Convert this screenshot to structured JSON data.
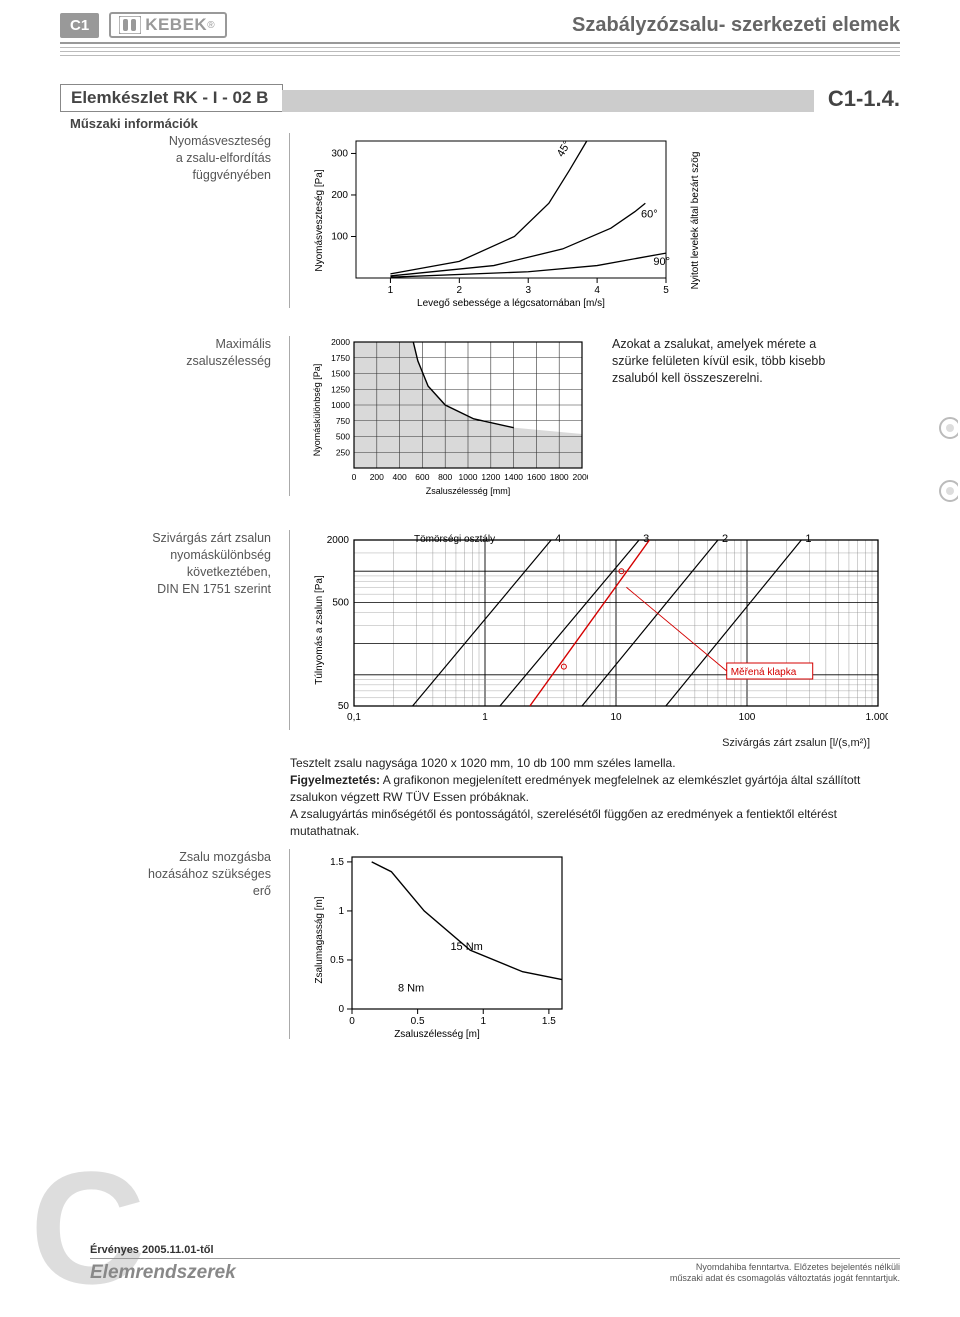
{
  "header": {
    "badge": "C1",
    "logo_text": "KEBEK",
    "title": "Szabályzózsalu- szerkezeti elemek"
  },
  "section": {
    "title": "Elemkészlet RK - I - 02 B",
    "code": "C1-1.4.",
    "subhead": "Műszaki információk"
  },
  "block1": {
    "label_lines": [
      "Nyomásveszteség",
      "a zsalu-elfordítás",
      "függvényében"
    ],
    "chart": {
      "type": "line",
      "ylabel": "Nyomásveszteség [Pa]",
      "xlabel": "Levegő sebessége a légcsatornában [m/s]",
      "rlabel": "Nyitott levelek által bezárt szög",
      "yticks": [
        100,
        200,
        300
      ],
      "xticks": [
        1,
        2,
        3,
        4,
        5
      ],
      "xlim": [
        0.5,
        5
      ],
      "ylim": [
        0,
        330
      ],
      "curve_labels": [
        "45°",
        "60°",
        "90°"
      ],
      "curves": [
        [
          [
            1,
            10
          ],
          [
            2,
            40
          ],
          [
            2.8,
            100
          ],
          [
            3.3,
            180
          ],
          [
            3.6,
            260
          ],
          [
            3.85,
            330
          ]
        ],
        [
          [
            1,
            5
          ],
          [
            2.5,
            30
          ],
          [
            3.5,
            70
          ],
          [
            4.2,
            120
          ],
          [
            4.55,
            160
          ],
          [
            4.7,
            180
          ]
        ],
        [
          [
            1,
            2
          ],
          [
            3,
            15
          ],
          [
            4,
            30
          ],
          [
            4.6,
            48
          ],
          [
            5,
            60
          ]
        ]
      ],
      "grid_color": "#666",
      "bg": "#ffffff",
      "line_color": "#000000",
      "font_size": 10
    }
  },
  "block2": {
    "label_lines": [
      "Maximális",
      "zsaluszélesség"
    ],
    "note": "Azokat a zsalukat, amelyek mérete a szürke felületen kívül esik, több kisebb zsaluból kell összeszerelni.",
    "chart": {
      "type": "area-limit",
      "ylabel": "Nyomáskülönbség [Pa]",
      "xlabel": "Zsaluszélesség [mm]",
      "yticks": [
        250,
        500,
        750,
        1000,
        1250,
        1500,
        1750,
        2000
      ],
      "xticks": [
        0,
        200,
        400,
        600,
        800,
        1000,
        1200,
        1400,
        1600,
        1800,
        2000
      ],
      "xlim": [
        0,
        2000
      ],
      "ylim": [
        0,
        2000
      ],
      "grey_region": [
        [
          0,
          0
        ],
        [
          0,
          2000
        ],
        [
          520,
          2000
        ],
        [
          560,
          1700
        ],
        [
          650,
          1300
        ],
        [
          800,
          1000
        ],
        [
          1050,
          780
        ],
        [
          1400,
          640
        ],
        [
          2000,
          540
        ],
        [
          2000,
          0
        ]
      ],
      "grid_color": "#333",
      "fill_color": "#d9d9d9",
      "font_size": 9
    }
  },
  "block3": {
    "label_lines": [
      "Szivárgás zárt zsalun",
      "nyomáskülönbség",
      "következtében,",
      "DIN EN 1751 szerint"
    ],
    "chart": {
      "type": "loglog",
      "ylabel": "Túlnyomás a zsalun [Pa]",
      "xlabel": "Szivárgás zárt zsalun [l/(s,m²)]",
      "top_label": "Tömörségi osztály",
      "class_labels": [
        "4",
        "3",
        "2",
        "1"
      ],
      "yticks": [
        50,
        500,
        2000
      ],
      "xticks": [
        0.1,
        1,
        10,
        100,
        1000
      ],
      "xtick_labels": [
        "0,1",
        "1",
        "10",
        "100",
        "1.000"
      ],
      "callout": "Měřená klapka",
      "callout_color": "#d40000",
      "grid_color": "#555",
      "font_size": 10
    }
  },
  "description": {
    "line1": "Tesztelt zsalu nagysága 1020 x 1020 mm, 10 db 100 mm széles lamella.",
    "line2_bold": "Figyelmeztetés:",
    "line2_rest": " A grafikonon megjelenített eredmények megfelelnek az elemkészlet gyártója által szállított zsalukon végzett RW TÜV Essen próbáknak.",
    "line3": "A zsalugyártás minőségétől és pontosságától, szerelésétől függően az eredmények a fentiektől eltérést mutathatnak."
  },
  "block4": {
    "label_lines": [
      "Zsalu mozgásba",
      "hozásához szükséges",
      "erő"
    ],
    "chart": {
      "type": "region",
      "ylabel": "Zsalumagasság [m]",
      "xlabel": "Zsaluszélesség [m]",
      "yticks": [
        0,
        0.5,
        1.0,
        1.5
      ],
      "xticks": [
        0,
        0.5,
        1.0,
        1.5
      ],
      "xlim": [
        0,
        1.6
      ],
      "ylim": [
        0,
        1.55
      ],
      "region_labels": [
        "8 Nm",
        "15 Nm"
      ],
      "boundary": [
        [
          0.15,
          1.5
        ],
        [
          0.3,
          1.4
        ],
        [
          0.55,
          1.0
        ],
        [
          0.9,
          0.6
        ],
        [
          1.3,
          0.38
        ],
        [
          1.6,
          0.3
        ]
      ],
      "grid_color": "#333",
      "font_size": 10
    }
  },
  "footer": {
    "valid": "Érvényes 2005.11.01-től",
    "title": "Elemrendszerek",
    "right1": "Nyomdahiba fenntartva. Előzetes bejelentés nélküli",
    "right2": "műszaki adat és csomagolás változtatás jogát fenntartjuk."
  }
}
